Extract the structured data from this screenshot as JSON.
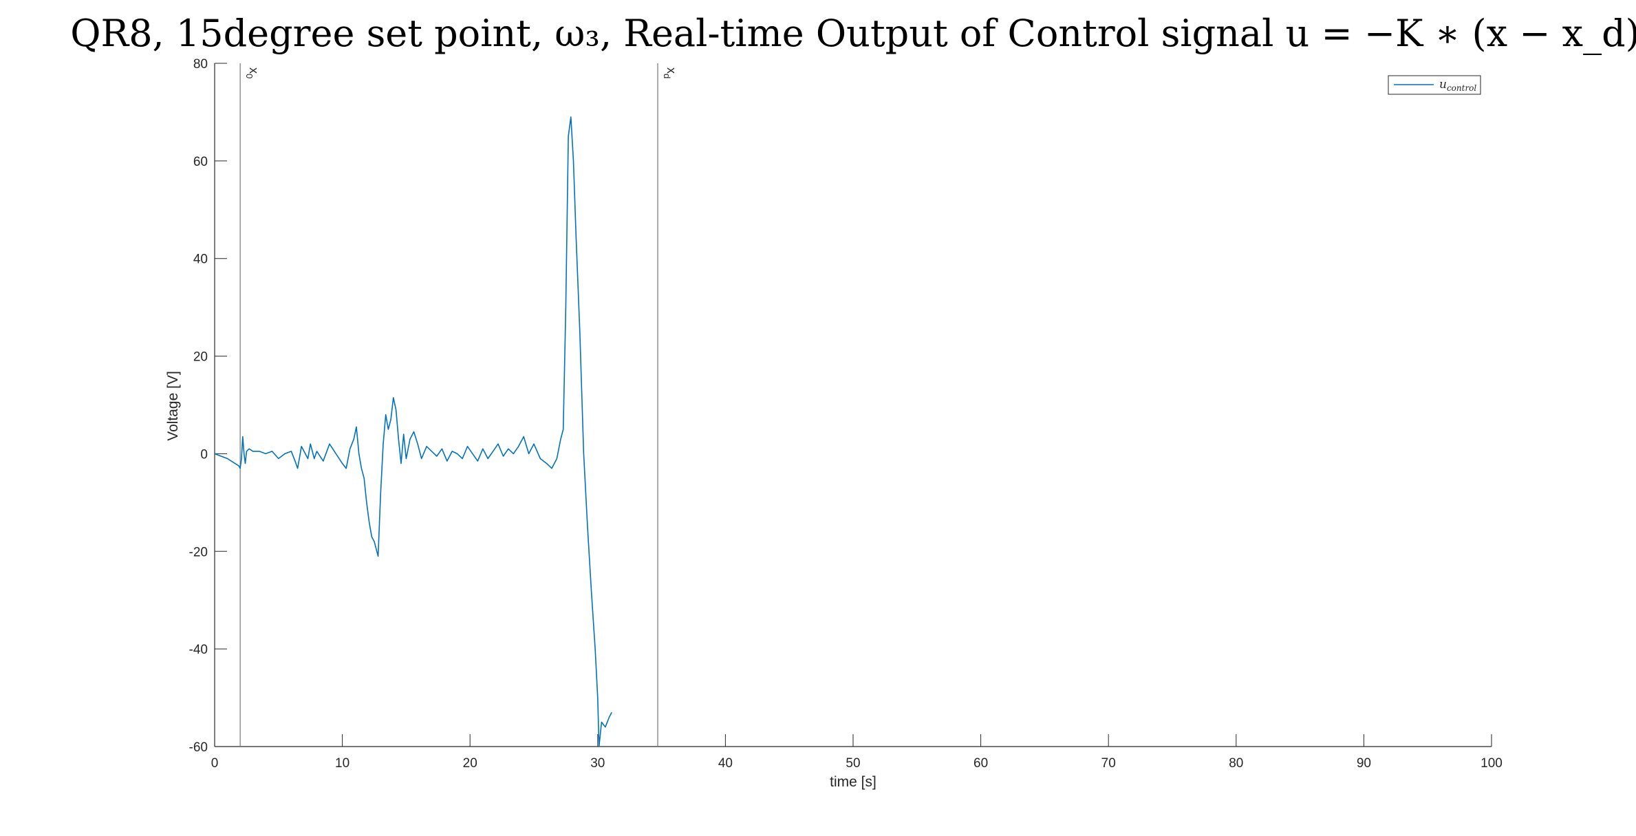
{
  "chart_data": {
    "type": "line",
    "title": "QR8, 15degree set point, ω₃, Real-time Output of Control signal u = −K ∗ (x − x_d)",
    "xlabel": "time [s]",
    "ylabel": "Voltage [V]",
    "xlim": [
      0,
      100
    ],
    "ylim": [
      -60,
      80
    ],
    "xticks": [
      0,
      10,
      20,
      30,
      40,
      50,
      60,
      70,
      80,
      90,
      100
    ],
    "yticks": [
      -60,
      -40,
      -20,
      0,
      20,
      40,
      60,
      80
    ],
    "xtick_labels": [
      "0",
      "10",
      "20",
      "30",
      "40",
      "50",
      "60",
      "70",
      "80",
      "90",
      "100"
    ],
    "ytick_labels": [
      "-60",
      "-40",
      "-20",
      "0",
      "20",
      "40",
      "60",
      "80"
    ],
    "grid": false,
    "legend_position": "top-right",
    "vertical_lines": [
      {
        "x": 2.0,
        "label": "x_0",
        "color": "#808080"
      },
      {
        "x": 34.7,
        "label": "x_d",
        "color": "#808080"
      }
    ],
    "series": [
      {
        "name": "u_control",
        "color": "#0072BD",
        "x": [
          0,
          0.5,
          1,
          1.3,
          1.6,
          1.9,
          2.0,
          2.1,
          2.2,
          2.3,
          2.4,
          2.5,
          2.7,
          3.0,
          3.5,
          4,
          4.5,
          5,
          5.5,
          6,
          6.3,
          6.5,
          6.8,
          7,
          7.3,
          7.5,
          7.8,
          8,
          8.5,
          9,
          9.5,
          10,
          10.3,
          10.6,
          10.9,
          11.1,
          11.3,
          11.5,
          11.7,
          11.9,
          12.1,
          12.3,
          12.5,
          12.8,
          13.0,
          13.2,
          13.4,
          13.6,
          13.8,
          14.0,
          14.2,
          14.4,
          14.6,
          14.8,
          15.0,
          15.3,
          15.6,
          15.9,
          16.2,
          16.6,
          17.0,
          17.4,
          17.8,
          18.2,
          18.6,
          19.0,
          19.4,
          19.8,
          20.2,
          20.6,
          21.0,
          21.4,
          21.8,
          22.2,
          22.6,
          23.0,
          23.4,
          23.8,
          24.2,
          24.6,
          25.0,
          25.5,
          26.0,
          26.4,
          26.8,
          27.1,
          27.3,
          27.5,
          27.7,
          27.9,
          28.1,
          28.3,
          28.6,
          28.9,
          29.2,
          29.5,
          29.8,
          30.0,
          30.1,
          30.3,
          30.6,
          30.9,
          31.1
        ],
        "y": [
          0,
          -0.5,
          -1,
          -1.5,
          -2,
          -2.5,
          -3,
          -1,
          3.5,
          0,
          -2,
          0.5,
          1,
          0.5,
          0.5,
          0,
          0.5,
          -1,
          0,
          0.5,
          -1.5,
          -3,
          1.5,
          0.5,
          -1,
          2,
          -1,
          0.5,
          -1.5,
          2,
          0,
          -2,
          -3,
          1,
          3,
          5.5,
          0,
          -3,
          -5,
          -10,
          -14,
          -17,
          -18,
          -21,
          -8,
          2,
          8,
          5,
          7,
          11.5,
          9,
          3,
          -2,
          4,
          -1,
          3,
          4.5,
          2,
          -1,
          1.5,
          0.5,
          -0.5,
          1,
          -1.5,
          0.5,
          0,
          -1,
          1.5,
          0,
          -1.5,
          1,
          -1,
          0.5,
          2,
          -0.5,
          1,
          0,
          1.5,
          3.5,
          0,
          2,
          -1,
          -2,
          -3,
          -1,
          3,
          5,
          30,
          65,
          69,
          60,
          45,
          25,
          0,
          -15,
          -28,
          -40,
          -50,
          -60,
          -55,
          -56,
          -54,
          -53
        ]
      }
    ]
  },
  "legend_label": "u",
  "legend_label_sub": "control"
}
